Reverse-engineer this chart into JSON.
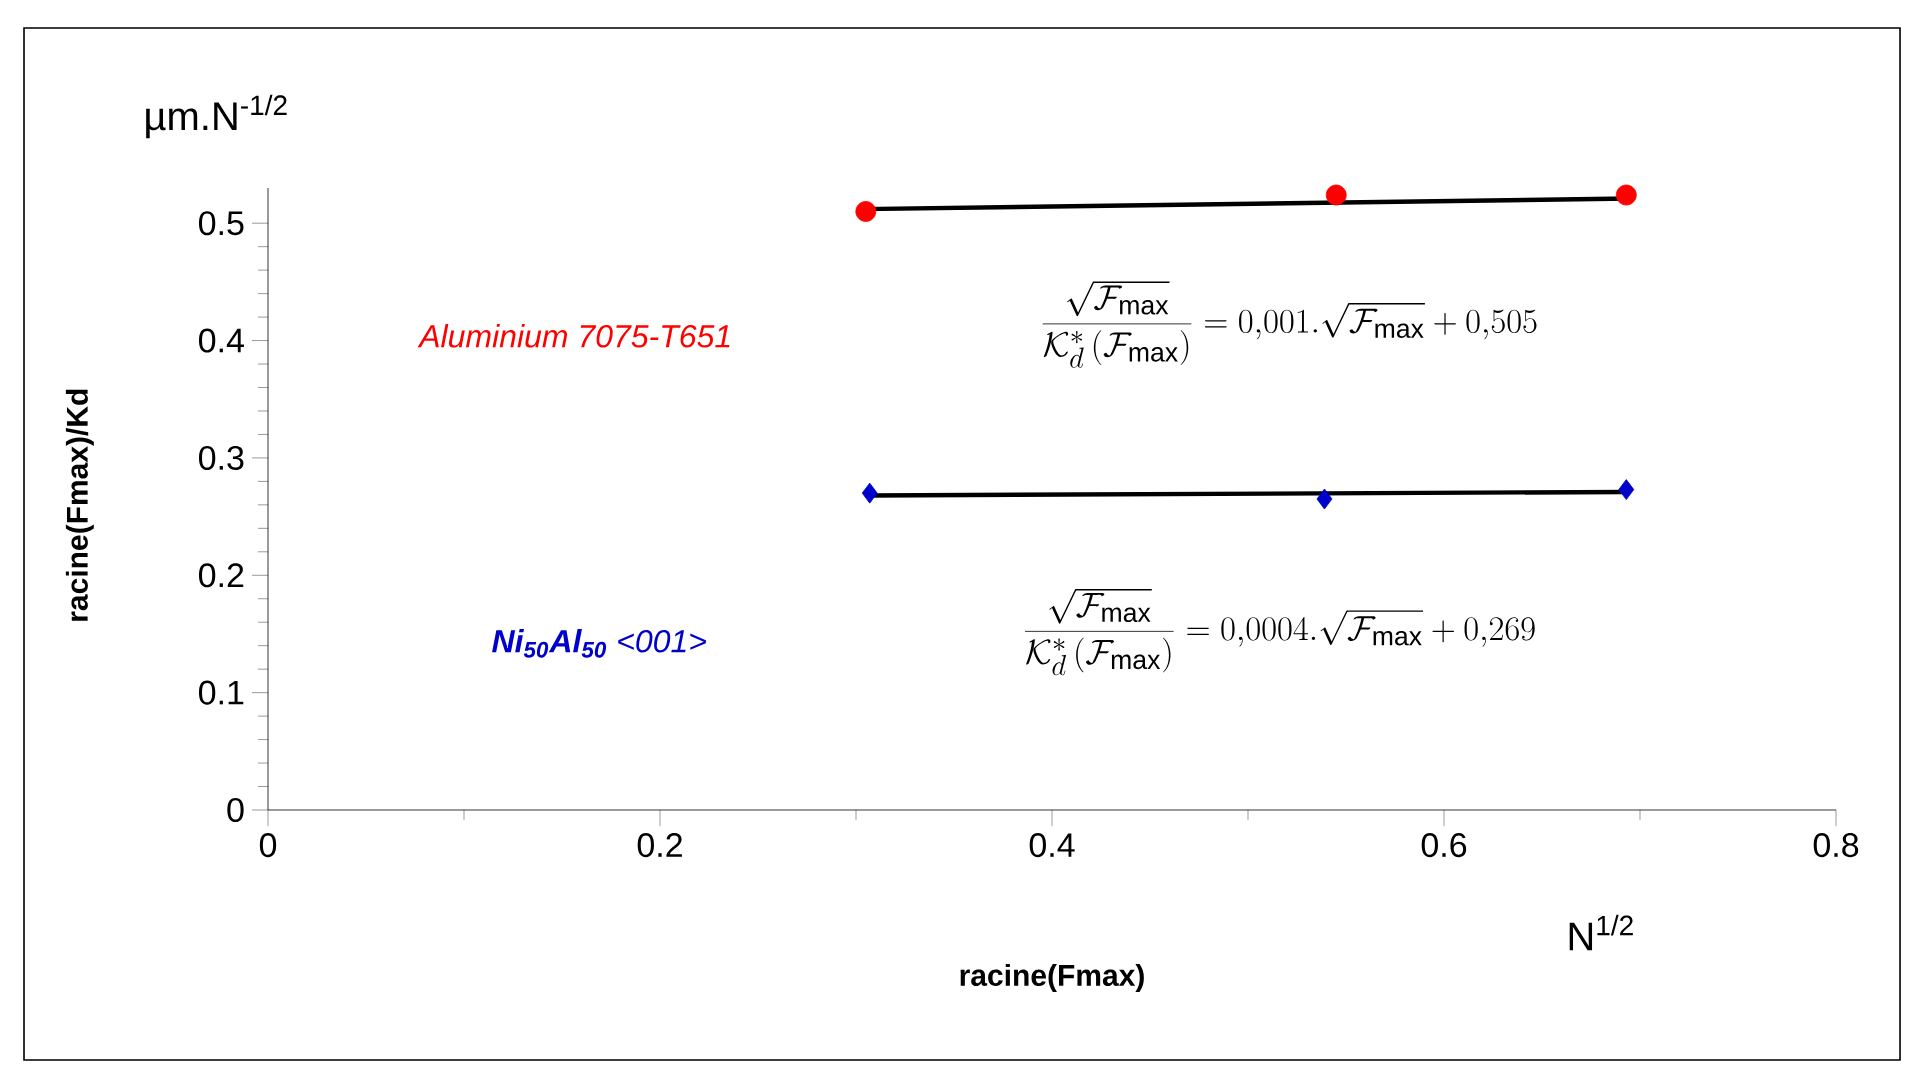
{
  "chart_data": {
    "type": "scatter",
    "xlabel": "racine(Fmax)",
    "ylabel": "racine(Fmax)/Kd",
    "xlim": [
      0,
      0.8
    ],
    "xticks": [
      0,
      0.2,
      0.4,
      0.6,
      0.8
    ],
    "ylim": [
      0,
      0.53
    ],
    "yticks": [
      0,
      0.1,
      0.2,
      0.3,
      0.4,
      0.5
    ],
    "grid": false,
    "series": [
      {
        "name": "Aluminium 7075-T651",
        "color": "#ff0000",
        "marker": "circle",
        "x": [
          0.305,
          0.545,
          0.693
        ],
        "values": [
          0.51,
          0.524,
          0.524
        ]
      },
      {
        "name": "**Ni$_{50}$Al$_{50}$** <001>",
        "color": "#0000cc",
        "marker": "diamond",
        "x": [
          0.307,
          0.539,
          0.693
        ],
        "values": [
          0.27,
          0.265,
          0.273
        ]
      },
      {
        "type": "line",
        "color": "#000000",
        "marker": "none",
        "x": [
          0.303,
          0.695
        ],
        "values": [
          0.512,
          0.521
        ]
      },
      {
        "type": "line",
        "color": "#000000",
        "marker": "none",
        "x": [
          0.307,
          0.693
        ],
        "values": [
          0.268,
          0.271
        ]
      }
    ],
    "annotations": [
      "\\frac{\\sqrt{\\mathcal{F}_{\\max}}}{\\mathcal{K}_d^{*}\\left(\\mathcal{F}_{\\max}\\right)}=0{,}001.\\sqrt{\\mathcal{F}_{\\max}}+0{,}505",
      "\\frac{\\sqrt{\\mathcal{F}_{\\max}}}{\\mathcal{K}_d^{*}\\left(\\mathcal{F}_{\\max}\\right)}=0{,}0004.\\sqrt{\\mathcal{F}_{\\max}}+0{,}269",
      "µm.N$^{-1/2}$",
      "N$^{1/2}$"
    ]
  }
}
